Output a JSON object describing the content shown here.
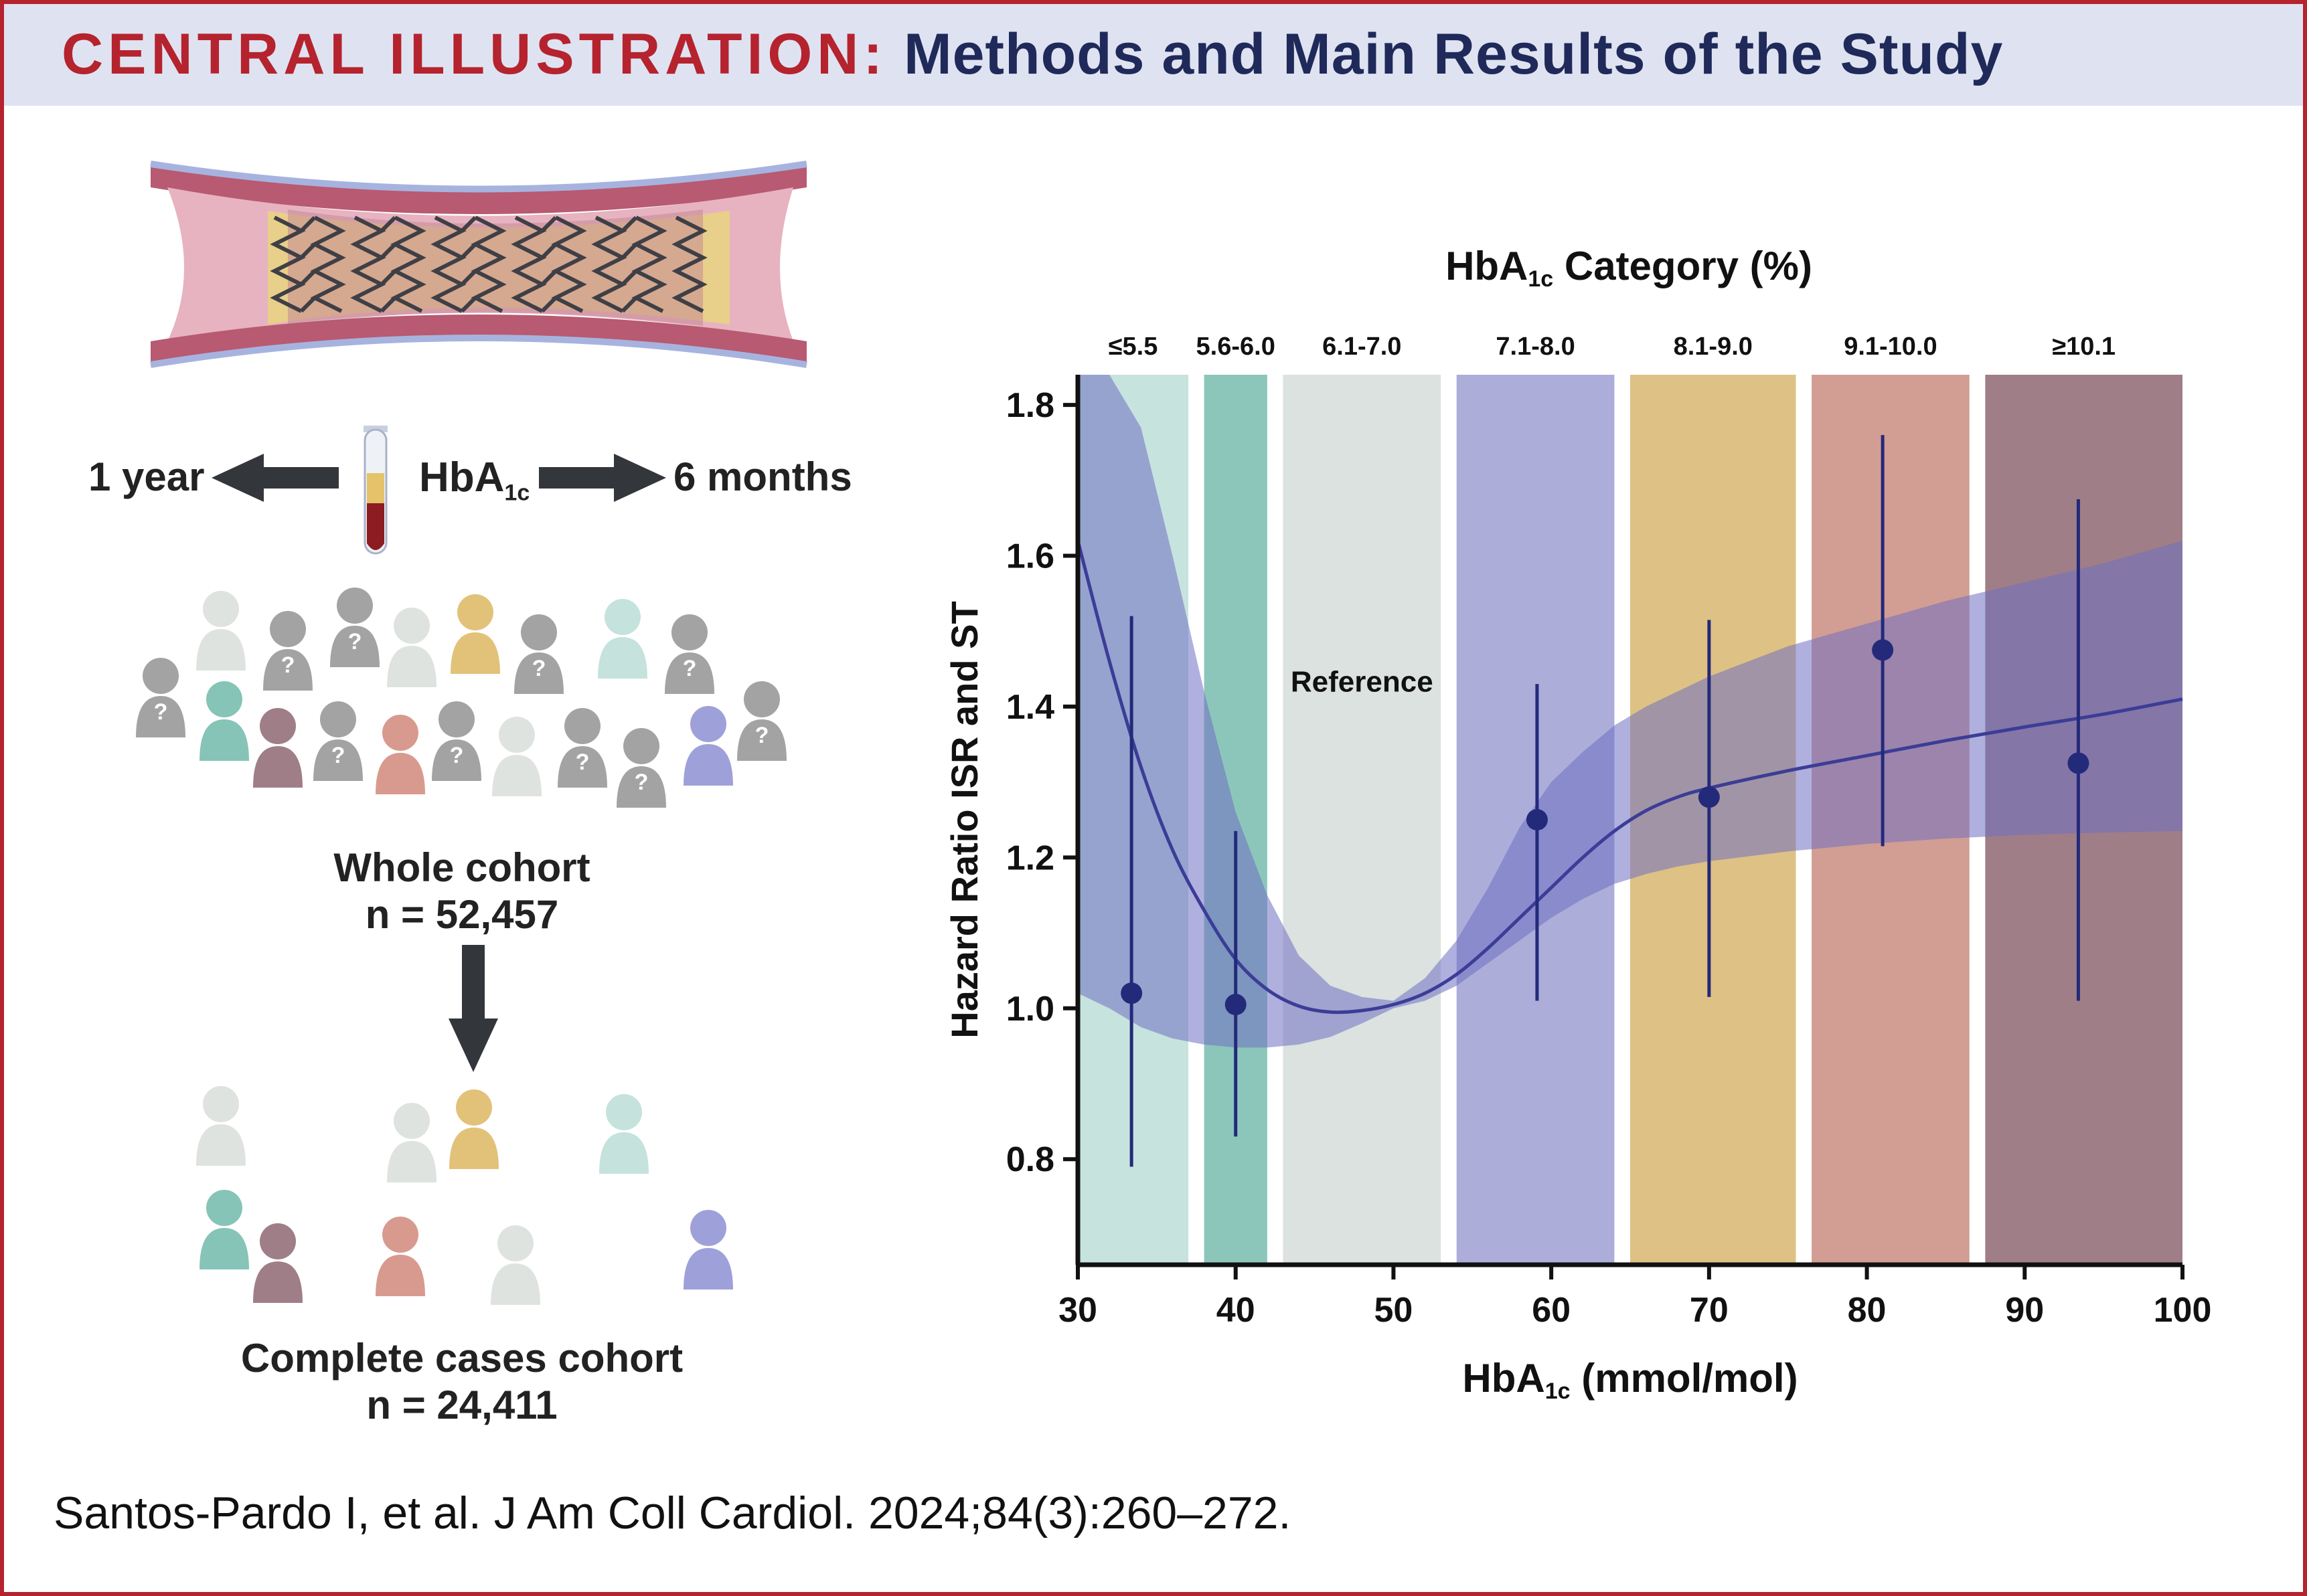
{
  "header": {
    "label": "CENTRAL ILLUSTRATION:",
    "title": "Methods and Main Results of the Study"
  },
  "methods": {
    "left_time": "1 year",
    "right_time": "6 months",
    "biomarker": "HbA",
    "biomarker_sub": "1c",
    "whole_cohort_label": "Whole cohort",
    "whole_cohort_n": "n = 52,457",
    "complete_cohort_label": "Complete cases cohort",
    "complete_cohort_n": "n = 24,411",
    "unknown_marker": "?",
    "icons": [
      "stent-artery-illustration",
      "blood-tube-icon",
      "arrow-left-icon",
      "arrow-right-icon",
      "arrow-down-icon",
      "person-icon"
    ]
  },
  "chart_data": {
    "type": "line",
    "title": "HbA1c Category (%)",
    "title_main": "HbA",
    "title_sub": "1c",
    "title_rest": " Category (%)",
    "xlabel": "HbA1c (mmol/mol)",
    "xlabel_main": "HbA",
    "xlabel_sub": "1c",
    "xlabel_rest": " (mmol/mol)",
    "ylabel": "Hazard Ratio ISR and ST",
    "xlim": [
      30,
      100
    ],
    "ylim": [
      0.66,
      1.84
    ],
    "x_ticks": [
      30,
      40,
      50,
      60,
      70,
      80,
      90,
      100
    ],
    "y_ticks": [
      0.8,
      1.0,
      1.2,
      1.4,
      1.6,
      1.8
    ],
    "y_tick_labels": [
      "0.8",
      "1.0",
      "1.2",
      "1.4",
      "1.6",
      "1.8"
    ],
    "grid": false,
    "reference_label": "Reference",
    "categories": [
      {
        "label": "≤5.5",
        "x_start": 30,
        "x_end": 37,
        "color": "#c7e3de"
      },
      {
        "label": "5.6-6.0",
        "x_start": 38,
        "x_end": 42,
        "color": "#8cc6bb"
      },
      {
        "label": "6.1-7.0",
        "x_start": 43,
        "x_end": 53,
        "color": "#dbe2df"
      },
      {
        "label": "7.1-8.0",
        "x_start": 54,
        "x_end": 64,
        "color": "#acaed9"
      },
      {
        "label": "8.1-9.0",
        "x_start": 65,
        "x_end": 75.5,
        "color": "#dec184"
      },
      {
        "label": "9.1-10.0",
        "x_start": 76.5,
        "x_end": 86.5,
        "color": "#d29d93"
      },
      {
        "label": "≥10.1",
        "x_start": 87.5,
        "x_end": 100,
        "color": "#a07e87"
      }
    ],
    "points": [
      {
        "x": 33.4,
        "y": 1.02,
        "lo": 0.79,
        "hi": 1.52
      },
      {
        "x": 40,
        "y": 1.005,
        "lo": 0.83,
        "hi": 1.235
      },
      {
        "x": 59.1,
        "y": 1.25,
        "lo": 1.01,
        "hi": 1.43
      },
      {
        "x": 70,
        "y": 1.28,
        "lo": 1.015,
        "hi": 1.515
      },
      {
        "x": 81,
        "y": 1.475,
        "lo": 1.215,
        "hi": 1.76
      },
      {
        "x": 93.4,
        "y": 1.325,
        "lo": 1.01,
        "hi": 1.675
      }
    ],
    "spline": {
      "x": [
        30,
        32,
        34,
        36,
        38,
        40,
        42,
        44,
        46,
        48,
        50,
        52,
        54,
        56,
        58,
        60,
        62,
        64,
        66,
        68,
        70,
        75,
        80,
        85,
        90,
        95,
        100
      ],
      "y": [
        1.62,
        1.46,
        1.32,
        1.21,
        1.13,
        1.065,
        1.025,
        1.003,
        0.995,
        0.997,
        1.005,
        1.02,
        1.045,
        1.08,
        1.12,
        1.16,
        1.2,
        1.235,
        1.262,
        1.28,
        1.292,
        1.315,
        1.335,
        1.355,
        1.373,
        1.39,
        1.41
      ],
      "lower": [
        1.02,
        1.0,
        0.975,
        0.96,
        0.952,
        0.948,
        0.948,
        0.952,
        0.962,
        0.98,
        1.0,
        1.01,
        1.03,
        1.06,
        1.09,
        1.12,
        1.145,
        1.165,
        1.178,
        1.188,
        1.195,
        1.208,
        1.218,
        1.225,
        1.23,
        1.233,
        1.235
      ],
      "upper": [
        1.84,
        1.84,
        1.77,
        1.6,
        1.42,
        1.26,
        1.15,
        1.07,
        1.03,
        1.015,
        1.01,
        1.04,
        1.09,
        1.16,
        1.24,
        1.3,
        1.34,
        1.375,
        1.4,
        1.42,
        1.44,
        1.48,
        1.51,
        1.54,
        1.565,
        1.59,
        1.62
      ]
    },
    "colors": {
      "line": "#3b3d96",
      "band": "#6f6fc2",
      "point": "#232a7a",
      "axis": "#111111"
    }
  },
  "citation": "Santos-Pardo I, et al. J Am Coll Cardiol. 2024;84(3):260–272."
}
